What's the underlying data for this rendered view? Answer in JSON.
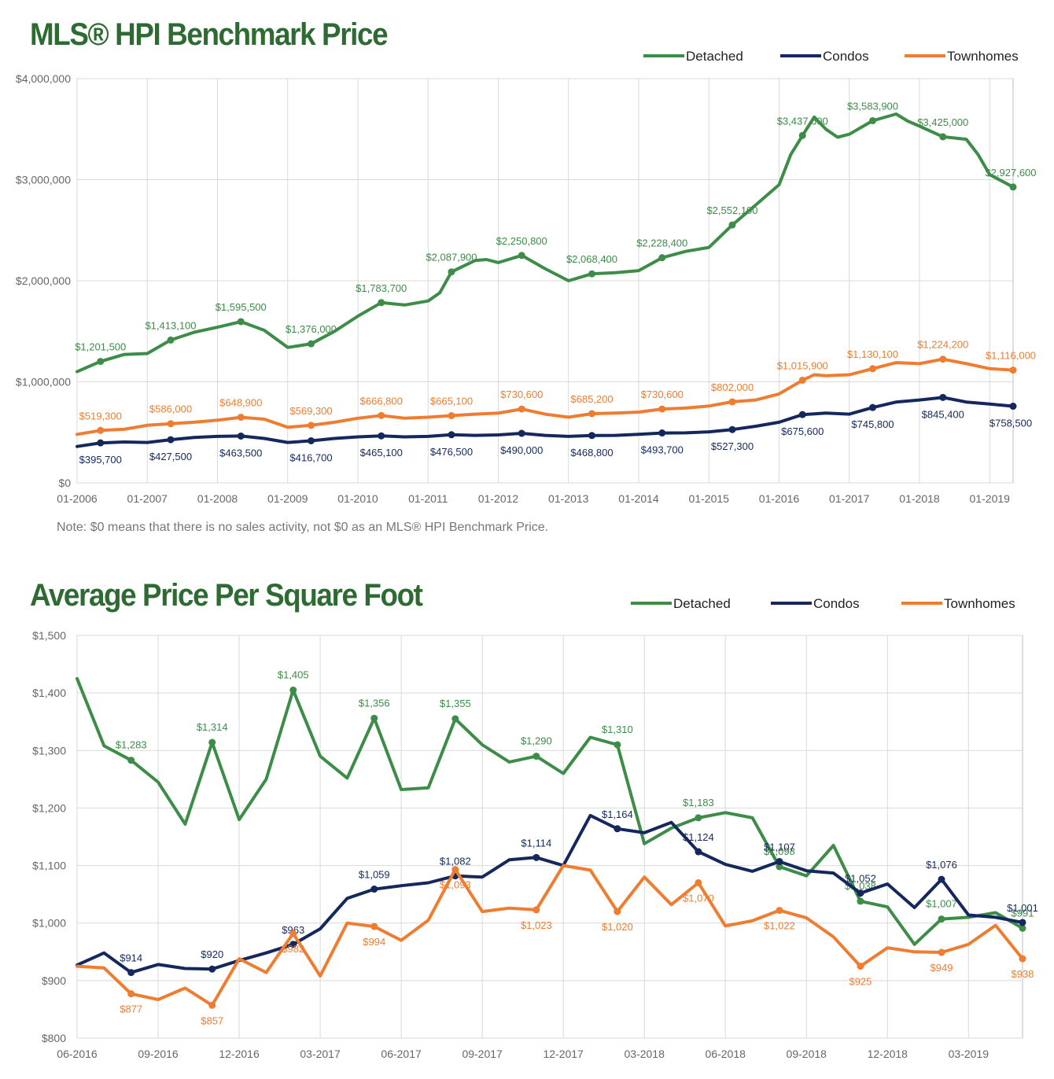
{
  "chart_data": [
    {
      "type": "line",
      "title": "MLS® HPI Benchmark Price",
      "note": "Note: $0 means that there is no sales activity, not $0 as an MLS® HPI Benchmark Price.",
      "x_tick_labels": [
        "01-2006",
        "01-2007",
        "01-2008",
        "01-2009",
        "01-2010",
        "01-2011",
        "01-2012",
        "01-2013",
        "01-2014",
        "01-2015",
        "01-2016",
        "01-2017",
        "01-2018",
        "01-2019"
      ],
      "y_tick_labels": [
        "$0",
        "$1,000,000",
        "$2,000,000",
        "$3,000,000",
        "$4,000,000"
      ],
      "ylim": [
        0,
        4000000
      ],
      "xlim": [
        "2006-01",
        "2019-05"
      ],
      "grid": true,
      "legend_position": "top-right",
      "series": [
        {
          "name": "Detached",
          "color": "#3d8c48",
          "x": [
            "2006-01",
            "2006-05",
            "2006-09",
            "2007-01",
            "2007-05",
            "2007-09",
            "2008-01",
            "2008-05",
            "2008-09",
            "2009-01",
            "2009-05",
            "2009-09",
            "2010-01",
            "2010-05",
            "2010-09",
            "2011-01",
            "2011-03",
            "2011-05",
            "2011-09",
            "2011-11",
            "2012-01",
            "2012-05",
            "2012-09",
            "2013-01",
            "2013-05",
            "2013-09",
            "2014-01",
            "2014-05",
            "2014-09",
            "2015-01",
            "2015-05",
            "2015-09",
            "2016-01",
            "2016-03",
            "2016-05",
            "2016-07",
            "2016-09",
            "2016-11",
            "2017-01",
            "2017-05",
            "2017-09",
            "2017-11",
            "2018-01",
            "2018-05",
            "2018-09",
            "2018-11",
            "2019-01",
            "2019-05"
          ],
          "values": [
            1100000,
            1201500,
            1270000,
            1280000,
            1413100,
            1490000,
            1540000,
            1595500,
            1510000,
            1340000,
            1376000,
            1500000,
            1650000,
            1783700,
            1760000,
            1800000,
            1880000,
            2087900,
            2200000,
            2210000,
            2180000,
            2250800,
            2120000,
            2000000,
            2068400,
            2080000,
            2100000,
            2228400,
            2290000,
            2330000,
            2552100,
            2750000,
            2950000,
            3250000,
            3437600,
            3620000,
            3500000,
            3420000,
            3450000,
            3583900,
            3650000,
            3580000,
            3530000,
            3425000,
            3400000,
            3250000,
            3050000,
            2927600
          ],
          "point_labels": [
            {
              "x": "2006-05",
              "label": "$1,201,500"
            },
            {
              "x": "2007-05",
              "label": "$1,413,100"
            },
            {
              "x": "2008-05",
              "label": "$1,595,500"
            },
            {
              "x": "2009-05",
              "label": "$1,376,000"
            },
            {
              "x": "2010-05",
              "label": "$1,783,700"
            },
            {
              "x": "2011-05",
              "label": "$2,087,900"
            },
            {
              "x": "2012-05",
              "label": "$2,250,800"
            },
            {
              "x": "2013-05",
              "label": "$2,068,400"
            },
            {
              "x": "2014-05",
              "label": "$2,228,400"
            },
            {
              "x": "2015-05",
              "label": "$2,552,100"
            },
            {
              "x": "2016-05",
              "label": "$3,437,600"
            },
            {
              "x": "2017-05",
              "label": "$3,583,900"
            },
            {
              "x": "2018-05",
              "label": "$3,425,000"
            },
            {
              "x": "2019-05",
              "label": "$2,927,600"
            }
          ]
        },
        {
          "name": "Condos",
          "color": "#14285e",
          "x": [
            "2006-01",
            "2006-05",
            "2006-09",
            "2007-01",
            "2007-05",
            "2007-09",
            "2008-01",
            "2008-05",
            "2008-09",
            "2009-01",
            "2009-05",
            "2009-09",
            "2010-01",
            "2010-05",
            "2010-09",
            "2011-01",
            "2011-05",
            "2011-09",
            "2012-01",
            "2012-05",
            "2012-09",
            "2013-01",
            "2013-05",
            "2013-09",
            "2014-01",
            "2014-05",
            "2014-09",
            "2015-01",
            "2015-05",
            "2015-09",
            "2016-01",
            "2016-05",
            "2016-09",
            "2017-01",
            "2017-05",
            "2017-09",
            "2018-01",
            "2018-05",
            "2018-09",
            "2019-01",
            "2019-05"
          ],
          "values": [
            360000,
            395700,
            405000,
            400000,
            427500,
            450000,
            460000,
            463500,
            440000,
            400000,
            416700,
            440000,
            455000,
            465100,
            455000,
            460000,
            476500,
            470000,
            475000,
            490000,
            470000,
            460000,
            468800,
            470000,
            480000,
            493700,
            495000,
            505000,
            527300,
            560000,
            600000,
            675600,
            690000,
            680000,
            745800,
            800000,
            820000,
            845400,
            800000,
            780000,
            758500
          ],
          "point_labels": [
            {
              "x": "2006-05",
              "label": "$395,700"
            },
            {
              "x": "2007-05",
              "label": "$427,500"
            },
            {
              "x": "2008-05",
              "label": "$463,500"
            },
            {
              "x": "2009-05",
              "label": "$416,700"
            },
            {
              "x": "2010-05",
              "label": "$465,100"
            },
            {
              "x": "2011-05",
              "label": "$476,500"
            },
            {
              "x": "2012-05",
              "label": "$490,000"
            },
            {
              "x": "2013-05",
              "label": "$468,800"
            },
            {
              "x": "2014-05",
              "label": "$493,700"
            },
            {
              "x": "2015-05",
              "label": "$527,300"
            },
            {
              "x": "2016-05",
              "label": "$675,600"
            },
            {
              "x": "2017-05",
              "label": "$745,800"
            },
            {
              "x": "2018-05",
              "label": "$845,400"
            },
            {
              "x": "2019-05",
              "label": "$758,500"
            }
          ]
        },
        {
          "name": "Townhomes",
          "color": "#ee7d31",
          "x": [
            "2006-01",
            "2006-05",
            "2006-09",
            "2007-01",
            "2007-05",
            "2007-09",
            "2008-01",
            "2008-05",
            "2008-09",
            "2009-01",
            "2009-05",
            "2009-09",
            "2010-01",
            "2010-05",
            "2010-09",
            "2011-01",
            "2011-05",
            "2011-09",
            "2012-01",
            "2012-05",
            "2012-09",
            "2013-01",
            "2013-05",
            "2013-09",
            "2014-01",
            "2014-05",
            "2014-09",
            "2015-01",
            "2015-05",
            "2015-09",
            "2016-01",
            "2016-05",
            "2016-07",
            "2016-09",
            "2017-01",
            "2017-05",
            "2017-09",
            "2018-01",
            "2018-05",
            "2018-09",
            "2019-01",
            "2019-05"
          ],
          "values": [
            480000,
            519300,
            530000,
            570000,
            586000,
            600000,
            620000,
            648900,
            630000,
            550000,
            569300,
            600000,
            640000,
            666800,
            640000,
            650000,
            665100,
            680000,
            690000,
            730600,
            680000,
            650000,
            685200,
            690000,
            700000,
            730600,
            740000,
            760000,
            802000,
            820000,
            880000,
            1015900,
            1070000,
            1060000,
            1070000,
            1130100,
            1190000,
            1180000,
            1224200,
            1180000,
            1130000,
            1116000
          ],
          "point_labels": [
            {
              "x": "2006-05",
              "label": "$519,300"
            },
            {
              "x": "2007-05",
              "label": "$586,000"
            },
            {
              "x": "2008-05",
              "label": "$648,900"
            },
            {
              "x": "2009-05",
              "label": "$569,300"
            },
            {
              "x": "2010-05",
              "label": "$666,800"
            },
            {
              "x": "2011-05",
              "label": "$665,100"
            },
            {
              "x": "2012-05",
              "label": "$730,600"
            },
            {
              "x": "2013-05",
              "label": "$685,200"
            },
            {
              "x": "2014-05",
              "label": "$730,600"
            },
            {
              "x": "2015-05",
              "label": "$802,000"
            },
            {
              "x": "2016-05",
              "label": "$1,015,900"
            },
            {
              "x": "2017-05",
              "label": "$1,130,100"
            },
            {
              "x": "2018-05",
              "label": "$1,224,200"
            },
            {
              "x": "2019-05",
              "label": "$1,116,000"
            }
          ]
        }
      ]
    },
    {
      "type": "line",
      "title": "Average Price Per Square Foot",
      "x_tick_labels": [
        "06-2016",
        "09-2016",
        "12-2016",
        "03-2017",
        "06-2017",
        "09-2017",
        "12-2017",
        "03-2018",
        "06-2018",
        "09-2018",
        "12-2018",
        "03-2019"
      ],
      "y_tick_labels": [
        "$800",
        "$900",
        "$1,000",
        "$1,100",
        "$1,200",
        "$1,300",
        "$1,400",
        "$1,500"
      ],
      "ylim": [
        800,
        1500
      ],
      "xlim": [
        "2016-06",
        "2019-05"
      ],
      "grid": true,
      "legend_position": "top-right",
      "x": [
        "2016-06",
        "2016-07",
        "2016-08",
        "2016-09",
        "2016-10",
        "2016-11",
        "2016-12",
        "2017-01",
        "2017-02",
        "2017-03",
        "2017-04",
        "2017-05",
        "2017-06",
        "2017-07",
        "2017-08",
        "2017-09",
        "2017-10",
        "2017-11",
        "2017-12",
        "2018-01",
        "2018-02",
        "2018-03",
        "2018-04",
        "2018-05",
        "2018-06",
        "2018-07",
        "2018-08",
        "2018-09",
        "2018-10",
        "2018-11",
        "2018-12",
        "2019-01",
        "2019-02",
        "2019-03",
        "2019-04",
        "2019-05"
      ],
      "series": [
        {
          "name": "Detached",
          "color": "#3d8c48",
          "values": [
            1425,
            1308,
            1283,
            1245,
            1172,
            1314,
            1180,
            1250,
            1405,
            1290,
            1252,
            1356,
            1232,
            1235,
            1355,
            1310,
            1280,
            1290,
            1260,
            1323,
            1310,
            1138,
            1165,
            1183,
            1192,
            1183,
            1098,
            1082,
            1135,
            1038,
            1028,
            963,
            1007,
            1010,
            1018,
            991
          ],
          "point_labels": [
            {
              "i": 2,
              "label": "$1,283"
            },
            {
              "i": 5,
              "label": "$1,314"
            },
            {
              "i": 8,
              "label": "$1,405"
            },
            {
              "i": 11,
              "label": "$1,356"
            },
            {
              "i": 14,
              "label": "$1,355"
            },
            {
              "i": 17,
              "label": "$1,290"
            },
            {
              "i": 20,
              "label": "$1,310"
            },
            {
              "i": 23,
              "label": "$1,183"
            },
            {
              "i": 26,
              "label": "$1,098"
            },
            {
              "i": 29,
              "label": "$1,038"
            },
            {
              "i": 32,
              "label": "$1,007"
            },
            {
              "i": 35,
              "label": "$991"
            }
          ]
        },
        {
          "name": "Condos",
          "color": "#14285e",
          "values": [
            927,
            948,
            914,
            928,
            921,
            920,
            935,
            948,
            963,
            990,
            1043,
            1059,
            1065,
            1070,
            1082,
            1080,
            1110,
            1114,
            1100,
            1187,
            1164,
            1157,
            1175,
            1124,
            1102,
            1090,
            1107,
            1091,
            1087,
            1052,
            1068,
            1027,
            1076,
            1014,
            1010,
            1001
          ],
          "point_labels": [
            {
              "i": 2,
              "label": "$914"
            },
            {
              "i": 5,
              "label": "$920"
            },
            {
              "i": 8,
              "label": "$963"
            },
            {
              "i": 11,
              "label": "$1,059"
            },
            {
              "i": 14,
              "label": "$1,082"
            },
            {
              "i": 17,
              "label": "$1,114"
            },
            {
              "i": 20,
              "label": "$1,164"
            },
            {
              "i": 23,
              "label": "$1,124"
            },
            {
              "i": 26,
              "label": "$1,107"
            },
            {
              "i": 29,
              "label": "$1,052"
            },
            {
              "i": 32,
              "label": "$1,076"
            },
            {
              "i": 35,
              "label": "$1,001"
            }
          ]
        },
        {
          "name": "Townhomes",
          "color": "#ee7d31",
          "values": [
            925,
            922,
            877,
            867,
            887,
            857,
            938,
            914,
            982,
            908,
            1000,
            994,
            970,
            1005,
            1093,
            1020,
            1026,
            1023,
            1100,
            1092,
            1020,
            1080,
            1032,
            1070,
            995,
            1004,
            1022,
            1009,
            976,
            925,
            957,
            950,
            949,
            963,
            996,
            938
          ],
          "point_labels": [
            {
              "i": 2,
              "label": "$877"
            },
            {
              "i": 5,
              "label": "$857"
            },
            {
              "i": 8,
              "label": "$982"
            },
            {
              "i": 11,
              "label": "$994"
            },
            {
              "i": 14,
              "label": "$1,093"
            },
            {
              "i": 17,
              "label": "$1,023"
            },
            {
              "i": 20,
              "label": "$1,020"
            },
            {
              "i": 23,
              "label": "$1,070"
            },
            {
              "i": 26,
              "label": "$1,022"
            },
            {
              "i": 29,
              "label": "$925"
            },
            {
              "i": 32,
              "label": "$949"
            },
            {
              "i": 35,
              "label": "$938"
            }
          ]
        }
      ]
    }
  ]
}
